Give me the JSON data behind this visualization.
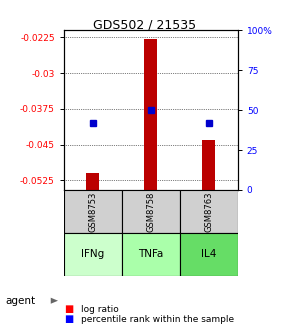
{
  "title": "GDS502 / 21535",
  "samples": [
    "GSM8753",
    "GSM8758",
    "GSM8763"
  ],
  "agents": [
    "IFNg",
    "TNFa",
    "IL4"
  ],
  "log_ratios": [
    -0.051,
    -0.0228,
    -0.044
  ],
  "percentile_ranks": [
    42,
    50,
    42
  ],
  "ylim_left": [
    -0.0545,
    -0.021
  ],
  "yticks_left": [
    -0.0525,
    -0.045,
    -0.0375,
    -0.03,
    -0.0225
  ],
  "yticks_right_pct": [
    0,
    25,
    50,
    75,
    100
  ],
  "bar_color": "#bb0000",
  "dot_color": "#0000cc",
  "legend_bar_label": "log ratio",
  "legend_dot_label": "percentile rank within the sample",
  "sample_bg": "#d0d0d0",
  "agent_bg": [
    "#ccffcc",
    "#aaffaa",
    "#66dd66"
  ]
}
